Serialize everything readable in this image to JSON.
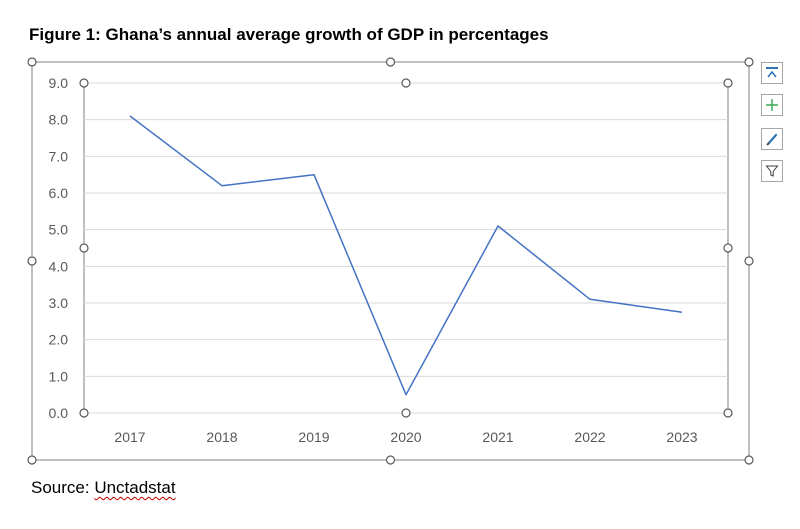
{
  "figure": {
    "title": "Figure 1: Ghana’s annual average growth of GDP in percentages",
    "source_prefix": "Source: ",
    "source_name": "Unctadstat"
  },
  "chart_tools": [
    {
      "name": "chart-layout-button",
      "icon": "chart-elements-icon"
    },
    {
      "name": "add-element-button",
      "icon": "plus-icon"
    },
    {
      "name": "chart-styles-button",
      "icon": "brush-icon"
    },
    {
      "name": "chart-filters-button",
      "icon": "funnel-icon"
    }
  ],
  "colors": {
    "line": "#4472c4",
    "grid": "#d9d9d9",
    "frame": "#7f7f7f",
    "handle_stroke": "#595959",
    "accent_plus": "#3aa655"
  },
  "chart_data": {
    "type": "line",
    "title": "",
    "xlabel": "",
    "ylabel": "",
    "categories": [
      "2017",
      "2018",
      "2019",
      "2020",
      "2021",
      "2022",
      "2023"
    ],
    "series": [
      {
        "values": [
          8.1,
          6.2,
          6.5,
          0.5,
          5.1,
          3.1,
          2.75
        ]
      }
    ],
    "ylim": [
      0,
      9
    ],
    "yticks": [
      "0.0",
      "1.0",
      "2.0",
      "3.0",
      "4.0",
      "5.0",
      "6.0",
      "7.0",
      "8.0",
      "9.0"
    ],
    "grid": true,
    "legend": "none"
  }
}
